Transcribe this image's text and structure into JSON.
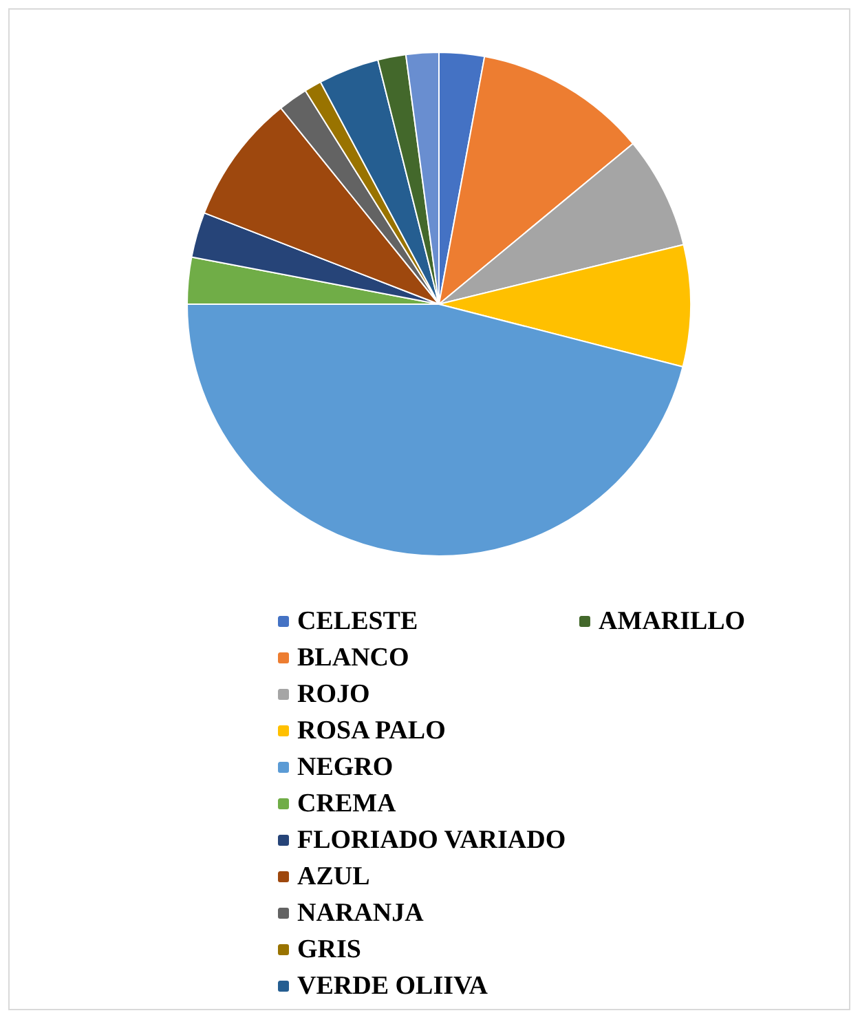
{
  "chart_data": {
    "type": "pie",
    "categories": [
      "CELESTE",
      "BLANCO",
      "ROJO",
      "ROSA PALO",
      "NEGRO",
      "CREMA",
      "FLORIADO VARIADO",
      "AZUL",
      "NARANJA",
      "GRIS",
      "VERDE OLIIVA",
      "AMARILLO",
      null
    ],
    "values": [
      2.9,
      11.1,
      7.2,
      7.8,
      46.0,
      3.0,
      2.9,
      8.3,
      1.9,
      1.1,
      3.9,
      1.8,
      2.1
    ],
    "colors": [
      "#4472c4",
      "#ed7d31",
      "#a5a5a5",
      "#ffc000",
      "#5b9bd5",
      "#70ad47",
      "#264478",
      "#9e480e",
      "#636363",
      "#997300",
      "#255e91",
      "#43682b",
      "#698ed0"
    ],
    "legend": "bottom"
  }
}
